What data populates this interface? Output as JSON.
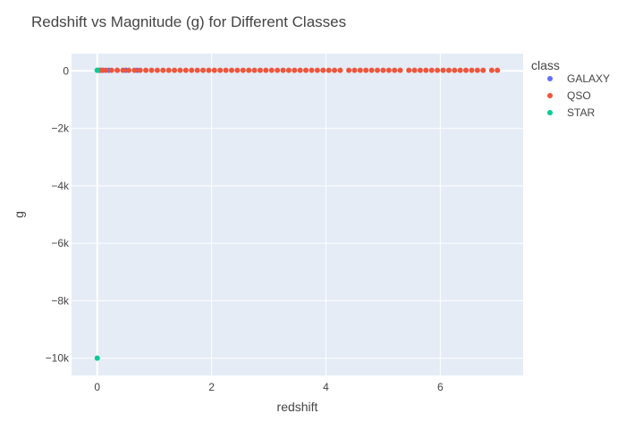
{
  "chart_data": {
    "type": "scatter",
    "title": "Redshift vs Magnitude (g) for Different Classes",
    "xlabel": "redshift",
    "ylabel": "g",
    "xlim": [
      -0.45,
      7.45
    ],
    "ylim": [
      -10600,
      600
    ],
    "xticks": [
      0,
      2,
      4,
      6
    ],
    "xtick_labels": [
      "0",
      "2",
      "4",
      "6"
    ],
    "yticks": [
      0,
      -2000,
      -4000,
      -6000,
      -8000,
      -10000
    ],
    "ytick_labels": [
      "0",
      "−2k",
      "−4k",
      "−6k",
      "−8k",
      "−10k"
    ],
    "grid": true,
    "legend": {
      "title": "class",
      "placement": "right"
    },
    "series": [
      {
        "name": "GALAXY",
        "color": "#636efa",
        "points": [
          [
            0.05,
            20
          ],
          [
            0.1,
            19
          ],
          [
            0.2,
            20
          ],
          [
            0.35,
            21
          ],
          [
            0.5,
            21
          ],
          [
            0.7,
            22
          ]
        ]
      },
      {
        "name": "QSO",
        "color": "#ef553b",
        "points": [
          [
            0.03,
            20
          ],
          [
            0.08,
            19
          ],
          [
            0.15,
            20
          ],
          [
            0.25,
            21
          ],
          [
            0.35,
            20
          ],
          [
            0.45,
            21
          ],
          [
            0.55,
            20
          ],
          [
            0.65,
            21
          ],
          [
            0.75,
            20
          ],
          [
            0.85,
            21
          ],
          [
            0.95,
            20
          ],
          [
            1.05,
            21
          ],
          [
            1.15,
            20
          ],
          [
            1.25,
            21
          ],
          [
            1.35,
            20
          ],
          [
            1.45,
            21
          ],
          [
            1.55,
            20
          ],
          [
            1.65,
            21
          ],
          [
            1.75,
            20
          ],
          [
            1.85,
            21
          ],
          [
            1.95,
            20
          ],
          [
            2.05,
            21
          ],
          [
            2.15,
            20
          ],
          [
            2.25,
            21
          ],
          [
            2.35,
            20
          ],
          [
            2.45,
            21
          ],
          [
            2.55,
            20
          ],
          [
            2.65,
            21
          ],
          [
            2.75,
            20
          ],
          [
            2.85,
            21
          ],
          [
            2.95,
            20
          ],
          [
            3.05,
            21
          ],
          [
            3.15,
            20
          ],
          [
            3.25,
            21
          ],
          [
            3.35,
            20
          ],
          [
            3.45,
            21
          ],
          [
            3.55,
            20
          ],
          [
            3.65,
            21
          ],
          [
            3.75,
            20
          ],
          [
            3.85,
            21
          ],
          [
            3.95,
            20
          ],
          [
            4.05,
            21
          ],
          [
            4.15,
            20
          ],
          [
            4.25,
            21
          ],
          [
            4.4,
            20
          ],
          [
            4.5,
            21
          ],
          [
            4.6,
            20
          ],
          [
            4.7,
            21
          ],
          [
            4.8,
            20
          ],
          [
            4.9,
            21
          ],
          [
            5.0,
            20
          ],
          [
            5.1,
            21
          ],
          [
            5.2,
            20
          ],
          [
            5.3,
            21
          ],
          [
            5.45,
            20
          ],
          [
            5.55,
            21
          ],
          [
            5.65,
            20
          ],
          [
            5.75,
            21
          ],
          [
            5.85,
            20
          ],
          [
            5.95,
            21
          ],
          [
            6.05,
            20
          ],
          [
            6.15,
            21
          ],
          [
            6.25,
            20
          ],
          [
            6.35,
            21
          ],
          [
            6.45,
            20
          ],
          [
            6.55,
            21
          ],
          [
            6.65,
            20
          ],
          [
            6.75,
            21
          ],
          [
            6.9,
            20
          ],
          [
            7.0,
            21
          ]
        ]
      },
      {
        "name": "STAR",
        "color": "#00cc96",
        "points": [
          [
            0.0,
            20
          ],
          [
            0.0,
            19
          ],
          [
            0.0,
            -9999
          ]
        ]
      }
    ]
  }
}
